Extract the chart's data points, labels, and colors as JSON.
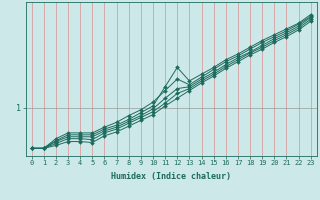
{
  "background_color": "#cce8e8",
  "grid_color": "#d89090",
  "line_color": "#1e6b5e",
  "xlabel": "Humidex (Indice chaleur)",
  "xlim": [
    -0.5,
    23.5
  ],
  "ylim": [
    0.5,
    2.1
  ],
  "ytick_labels": [
    "1"
  ],
  "ytick_positions": [
    1.0
  ],
  "xticks": [
    0,
    1,
    2,
    3,
    4,
    5,
    6,
    7,
    8,
    9,
    10,
    11,
    12,
    13,
    14,
    15,
    16,
    17,
    18,
    19,
    20,
    21,
    22,
    23
  ],
  "series": [
    [
      0.58,
      0.58,
      0.66,
      0.72,
      0.72,
      0.72,
      0.78,
      0.82,
      0.88,
      0.95,
      1.02,
      1.22,
      1.42,
      1.28,
      1.35,
      1.42,
      1.5,
      1.56,
      1.63,
      1.7,
      1.76,
      1.82,
      1.88,
      1.97
    ],
    [
      0.58,
      0.58,
      0.68,
      0.74,
      0.74,
      0.74,
      0.8,
      0.85,
      0.92,
      0.98,
      1.06,
      1.18,
      1.3,
      1.24,
      1.32,
      1.4,
      1.48,
      1.54,
      1.61,
      1.68,
      1.74,
      1.8,
      1.87,
      1.95
    ],
    [
      0.58,
      0.58,
      0.65,
      0.7,
      0.7,
      0.7,
      0.76,
      0.8,
      0.86,
      0.92,
      0.99,
      1.1,
      1.2,
      1.22,
      1.3,
      1.37,
      1.45,
      1.52,
      1.58,
      1.65,
      1.72,
      1.78,
      1.85,
      1.94
    ],
    [
      0.58,
      0.58,
      0.63,
      0.68,
      0.68,
      0.67,
      0.74,
      0.78,
      0.84,
      0.9,
      0.96,
      1.05,
      1.15,
      1.2,
      1.28,
      1.35,
      1.43,
      1.5,
      1.57,
      1.63,
      1.7,
      1.76,
      1.83,
      1.92
    ],
    [
      0.58,
      0.58,
      0.61,
      0.65,
      0.65,
      0.64,
      0.71,
      0.75,
      0.81,
      0.87,
      0.93,
      1.02,
      1.1,
      1.18,
      1.26,
      1.33,
      1.41,
      1.48,
      1.55,
      1.61,
      1.68,
      1.74,
      1.81,
      1.9
    ]
  ],
  "marker": "D",
  "markersize": 2.0,
  "linewidth": 0.7,
  "xlabel_fontsize": 6,
  "tick_fontsize": 5,
  "ytick_fontsize": 6,
  "fig_width": 3.2,
  "fig_height": 2.0,
  "dpi": 100
}
